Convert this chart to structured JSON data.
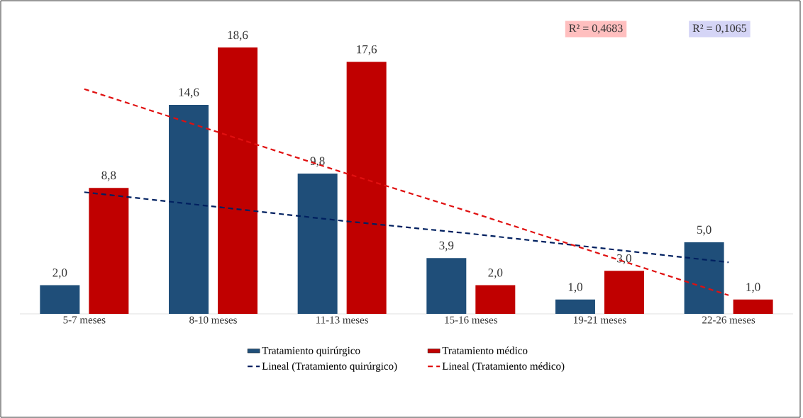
{
  "chart_data": {
    "type": "bar",
    "categories": [
      "5-7 meses",
      "8-10 meses",
      "11-13 meses",
      "15-16 meses",
      "19-21 meses",
      "22-26 meses"
    ],
    "series": [
      {
        "name": "Tratamiento quirúrgico",
        "color": "#1f4e79",
        "values": [
          2.0,
          14.6,
          9.8,
          3.9,
          1.0,
          5.0
        ],
        "value_labels": [
          "2,0",
          "14,6",
          "9,8",
          "3,9",
          "1,0",
          "5,0"
        ]
      },
      {
        "name": "Tratamiento médico",
        "color": "#c00000",
        "values": [
          8.8,
          18.6,
          17.6,
          2.0,
          3.0,
          1.0
        ],
        "value_labels": [
          "8,8",
          "18,6",
          "17,6",
          "2,0",
          "3,0",
          "1,0"
        ]
      },
      {
        "name": "Lineal (Tratamiento quirúrgico)",
        "type": "line",
        "line_style": "dashed",
        "color": "#002060",
        "values": [
          8.5,
          7.5,
          6.5,
          5.6,
          4.6,
          3.6
        ]
      },
      {
        "name": "Lineal (Tratamiento médico)",
        "type": "line",
        "line_style": "dashed",
        "color": "#e01010",
        "values": [
          15.7,
          12.8,
          9.9,
          7.1,
          4.2,
          1.3
        ]
      }
    ],
    "annotations": [
      "R² = 0,4683",
      "R² = 0,1065"
    ],
    "tick_labels": "x",
    "grid": false,
    "legend": "bottom",
    "marker": "none"
  }
}
